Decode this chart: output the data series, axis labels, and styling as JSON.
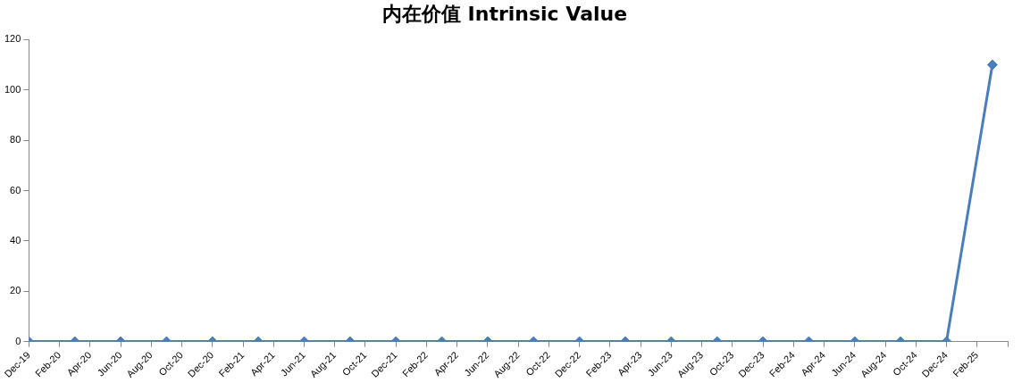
{
  "chart_data": {
    "type": "line",
    "title": "内在价值 Intrinsic Value",
    "series": [
      {
        "color": "#4a7ebb",
        "x": [
          "2019-12",
          "2020-03",
          "2020-06",
          "2020-09",
          "2020-12",
          "2021-03",
          "2021-06",
          "2021-09",
          "2021-12",
          "2022-03",
          "2022-06",
          "2022-09",
          "2022-12",
          "2023-03",
          "2023-06",
          "2023-09",
          "2023-12",
          "2024-03",
          "2024-06",
          "2024-09",
          "2024-12",
          "2025-03"
        ],
        "values": [
          0,
          0,
          0,
          0,
          0,
          0,
          0,
          0,
          0,
          0,
          0,
          0,
          0,
          0,
          0,
          0,
          0,
          0,
          0,
          0,
          0,
          110
        ]
      }
    ],
    "xlim": [
      "2019-12",
      "2025-04"
    ],
    "xticks": [
      {
        "value": "2019-12",
        "label": "Dec-19"
      },
      {
        "value": "2020-02",
        "label": "Feb-20"
      },
      {
        "value": "2020-04",
        "label": "Apr-20"
      },
      {
        "value": "2020-06",
        "label": "Jun-20"
      },
      {
        "value": "2020-08",
        "label": "Aug-20"
      },
      {
        "value": "2020-10",
        "label": "Oct-20"
      },
      {
        "value": "2020-12",
        "label": "Dec-20"
      },
      {
        "value": "2021-02",
        "label": "Feb-21"
      },
      {
        "value": "2021-04",
        "label": "Apr-21"
      },
      {
        "value": "2021-06",
        "label": "Jun-21"
      },
      {
        "value": "2021-08",
        "label": "Aug-21"
      },
      {
        "value": "2021-10",
        "label": "Oct-21"
      },
      {
        "value": "2021-12",
        "label": "Dec-21"
      },
      {
        "value": "2022-02",
        "label": "Feb-22"
      },
      {
        "value": "2022-04",
        "label": "Apr-22"
      },
      {
        "value": "2022-06",
        "label": "Jun-22"
      },
      {
        "value": "2022-08",
        "label": "Aug-22"
      },
      {
        "value": "2022-10",
        "label": "Oct-22"
      },
      {
        "value": "2022-12",
        "label": "Dec-22"
      },
      {
        "value": "2023-02",
        "label": "Feb-23"
      },
      {
        "value": "2023-04",
        "label": "Apr-23"
      },
      {
        "value": "2023-06",
        "label": "Jun-23"
      },
      {
        "value": "2023-08",
        "label": "Aug-23"
      },
      {
        "value": "2023-10",
        "label": "Oct-23"
      },
      {
        "value": "2023-12",
        "label": "Dec-23"
      },
      {
        "value": "2024-02",
        "label": "Feb-24"
      },
      {
        "value": "2024-04",
        "label": "Apr-24"
      },
      {
        "value": "2024-06",
        "label": "Jun-24"
      },
      {
        "value": "2024-08",
        "label": "Aug-24"
      },
      {
        "value": "2024-10",
        "label": "Oct-24"
      },
      {
        "value": "2024-12",
        "label": "Dec-24"
      },
      {
        "value": "2025-02",
        "label": "Feb-25"
      },
      {
        "value": "2025-04",
        "label": null
      }
    ],
    "ylim": [
      0,
      120
    ],
    "yticks": [
      0,
      20,
      40,
      60,
      80,
      100,
      120
    ],
    "grid": false,
    "legend": false,
    "marker": "diamond",
    "line_style": "solid"
  }
}
